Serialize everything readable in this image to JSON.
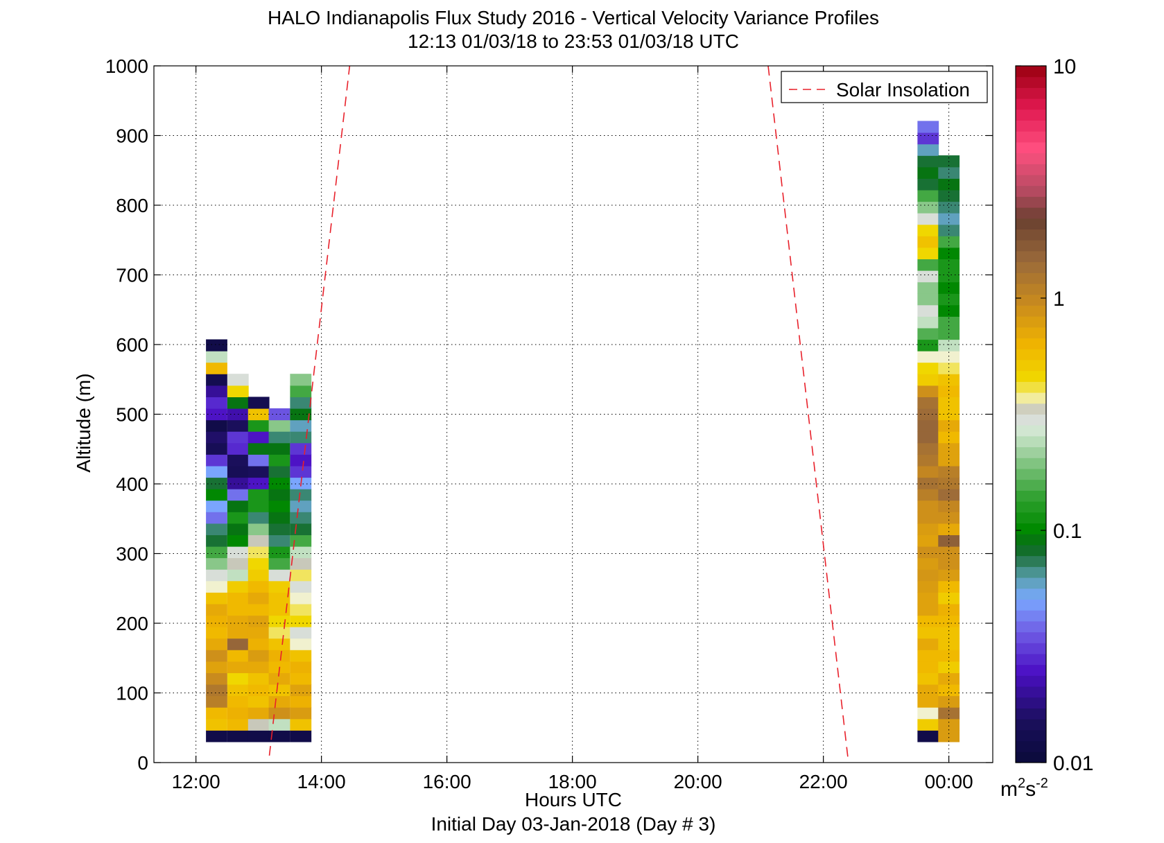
{
  "chart_data": {
    "type": "heatmap",
    "title": "HALO Indianapolis Flux Study 2016 - Vertical Velocity Variance Profiles",
    "subtitle": "12:13 01/03/18 to 23:53 01/03/18  UTC",
    "xlabel": "Hours UTC",
    "xlabel2": "Initial Day 03-Jan-2018 (Day # 3)",
    "ylabel": "Altitude (m)",
    "x_unit": "hours UTC",
    "xlim": [
      11.33,
      24.7
    ],
    "ylim": [
      0,
      1000
    ],
    "xticks": [
      12,
      14,
      16,
      18,
      20,
      22,
      24
    ],
    "xtick_labels": [
      "12:00",
      "14:00",
      "16:00",
      "18:00",
      "20:00",
      "22:00",
      "00:00"
    ],
    "yticks": [
      0,
      100,
      200,
      300,
      400,
      500,
      600,
      700,
      800,
      900,
      1000
    ],
    "ytick_labels": [
      "0",
      "100",
      "200",
      "300",
      "400",
      "500",
      "600",
      "700",
      "800",
      "900",
      "1000"
    ],
    "grid": true,
    "legend": {
      "position": "top-right",
      "entries": [
        "Solar Insolation"
      ]
    },
    "colorbar": {
      "scale": "log",
      "range": [
        0.01,
        10
      ],
      "ticks": [
        0.01,
        0.1,
        1,
        10
      ],
      "tick_labels": [
        "0.01",
        "0.1",
        "1",
        "10"
      ],
      "unit_base": "m",
      "unit_sup1": "2",
      "unit_mid": "s",
      "unit_sup2": "-2"
    },
    "series": [
      {
        "name": "Solar Insolation",
        "type": "dashed-line",
        "color": "#e8202a",
        "segments": [
          {
            "x": [
              13.17,
              14.45
            ],
            "y": [
              10,
              1000
            ]
          },
          {
            "x": [
              21.12,
              22.4
            ],
            "y": [
              1000,
              0
            ]
          }
        ]
      }
    ],
    "heatmap": {
      "cell_height_m": 16.5,
      "base_m": 30,
      "columns": [
        {
          "x": 12.33,
          "values": [
            0.012,
            0.55,
            0.6,
            1.1,
            1.2,
            0.95,
            0.75,
            0.9,
            0.7,
            0.6,
            0.65,
            0.7,
            0.55,
            0.35,
            0.3,
            0.2,
            0.15,
            0.08,
            0.07,
            0.04,
            0.05,
            0.1,
            0.08,
            0.05,
            0.03,
            0.014,
            0.016,
            0.012,
            0.025,
            0.028,
            0.02,
            0.013,
            0.6,
            0.25,
            0.012
          ]
        },
        {
          "x": 12.67,
          "values": [
            0.012,
            0.6,
            0.65,
            0.6,
            0.55,
            0.45,
            0.7,
            0.6,
            1.5,
            0.7,
            0.7,
            0.6,
            0.6,
            0.5,
            0.25,
            0.33,
            0.3,
            0.1,
            0.09,
            0.12,
            0.09,
            0.04,
            0.02,
            0.014,
            0.015,
            0.028,
            0.03,
            0.015,
            0.022,
            0.09,
            0.45,
            0.3
          ]
        },
        {
          "x": 13.0,
          "values": [
            0.012,
            0.33,
            0.7,
            0.55,
            0.6,
            0.55,
            0.7,
            0.8,
            0.65,
            0.7,
            0.75,
            0.6,
            0.7,
            0.6,
            0.5,
            0.45,
            0.4,
            0.33,
            0.2,
            0.07,
            0.12,
            0.12,
            0.025,
            0.015,
            0.04,
            0.09,
            0.025,
            0.12,
            0.55,
            0.013
          ]
        },
        {
          "x": 13.33,
          "values": [
            0.012,
            0.25,
            0.9,
            0.7,
            0.55,
            0.7,
            0.6,
            0.65,
            0.55,
            0.4,
            0.45,
            0.55,
            0.55,
            0.5,
            0.3,
            0.15,
            0.12,
            0.07,
            0.08,
            0.09,
            0.1,
            0.09,
            0.1,
            0.08,
            0.12,
            0.09,
            0.07,
            0.2,
            0.035
          ]
        },
        {
          "x": 13.67,
          "values": [
            0.012,
            0.55,
            0.8,
            0.65,
            0.75,
            0.6,
            0.65,
            0.55,
            0.35,
            0.3,
            0.45,
            0.4,
            0.35,
            0.3,
            0.4,
            0.33,
            0.25,
            0.15,
            0.08,
            0.07,
            0.06,
            0.07,
            0.05,
            0.03,
            0.025,
            0.03,
            0.07,
            0.06,
            0.09,
            0.07,
            0.15,
            0.2
          ]
        },
        {
          "x": 23.67,
          "values": [
            0.012,
            0.5,
            0.35,
            0.7,
            0.7,
            0.55,
            0.6,
            0.6,
            0.7,
            0.55,
            0.6,
            0.75,
            0.75,
            0.8,
            0.85,
            0.8,
            0.9,
            0.75,
            0.8,
            0.9,
            0.9,
            1.1,
            1.3,
            1.0,
            1.2,
            1.3,
            1.5,
            1.5,
            1.4,
            1.3,
            0.9,
            0.5,
            0.45,
            0.35,
            0.12,
            0.16,
            0.25,
            0.3,
            0.2,
            0.2,
            0.3,
            0.15,
            0.45,
            0.55,
            0.45,
            0.3,
            0.2,
            0.15,
            0.08,
            0.09,
            0.08,
            0.06,
            0.03,
            0.04
          ]
        },
        {
          "x": 24.0,
          "values": [
            0.8,
            0.8,
            1.3,
            0.8,
            0.6,
            0.7,
            0.5,
            0.6,
            0.55,
            0.55,
            0.6,
            0.65,
            0.5,
            0.6,
            0.8,
            0.9,
            0.9,
            1.6,
            0.7,
            0.9,
            1.0,
            1.4,
            1.2,
            1.1,
            0.75,
            0.75,
            0.6,
            0.7,
            0.55,
            0.55,
            0.6,
            0.55,
            0.4,
            0.35,
            0.25,
            0.15,
            0.15,
            0.1,
            0.12,
            0.1,
            0.12,
            0.12,
            0.1,
            0.15,
            0.07,
            0.06,
            0.07,
            0.08,
            0.09,
            0.07,
            0.08
          ]
        }
      ]
    }
  }
}
